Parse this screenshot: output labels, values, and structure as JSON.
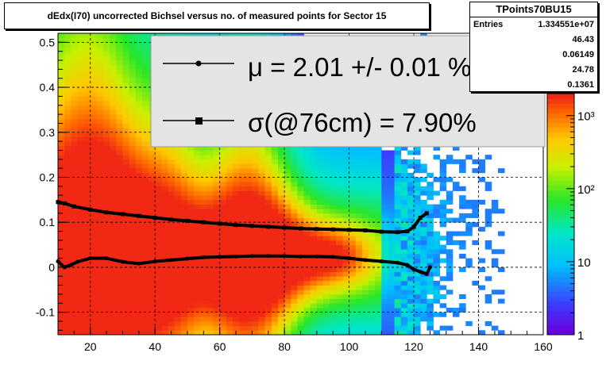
{
  "chart_data": {
    "type": "heatmap",
    "title": "dEdx(I70) uncorrected Bichsel versus no. of measured points for Sector 15",
    "xlim": [
      10,
      160
    ],
    "ylim": [
      -0.15,
      0.52
    ],
    "x_ticks": [
      "20",
      "40",
      "60",
      "80",
      "100",
      "120",
      "140",
      "160"
    ],
    "x_tick_values": [
      20,
      40,
      60,
      80,
      100,
      120,
      140,
      160
    ],
    "y_ticks": [
      "-0.1",
      "0",
      "0.1",
      "0.2",
      "0.3",
      "0.4",
      "0.5"
    ],
    "y_tick_values": [
      -0.1,
      0,
      0.1,
      0.2,
      0.3,
      0.4,
      0.5
    ],
    "z_scale": "log",
    "z_range": [
      1,
      2000
    ],
    "z_ticks": [
      "1",
      "10",
      "10²",
      "10³"
    ],
    "z_tick_values": [
      1,
      10,
      100,
      1000
    ],
    "grid": true,
    "series": [
      {
        "name": "μ",
        "marker": "circle",
        "x": [
          10,
          12,
          14,
          16,
          20,
          25,
          30,
          35,
          40,
          45,
          50,
          55,
          60,
          65,
          70,
          75,
          80,
          85,
          90,
          95,
          100,
          105,
          110,
          115,
          118,
          120,
          122,
          124,
          125
        ],
        "y": [
          0.013,
          0.0,
          0.005,
          0.012,
          0.02,
          0.02,
          0.012,
          0.008,
          0.013,
          0.016,
          0.019,
          0.022,
          0.023,
          0.024,
          0.025,
          0.025,
          0.025,
          0.024,
          0.024,
          0.023,
          0.02,
          0.016,
          0.013,
          0.01,
          0.005,
          -0.005,
          -0.01,
          -0.015,
          0.0
        ]
      },
      {
        "name": "σ(@76cm)",
        "marker": "square",
        "x": [
          10,
          12,
          15,
          20,
          25,
          30,
          35,
          40,
          45,
          50,
          55,
          60,
          65,
          70,
          75,
          80,
          85,
          90,
          95,
          100,
          105,
          110,
          115,
          118,
          120,
          122,
          124
        ],
        "y": [
          0.145,
          0.142,
          0.135,
          0.128,
          0.122,
          0.118,
          0.114,
          0.11,
          0.106,
          0.103,
          0.1,
          0.097,
          0.094,
          0.092,
          0.09,
          0.088,
          0.086,
          0.085,
          0.084,
          0.083,
          0.082,
          0.079,
          0.078,
          0.08,
          0.09,
          0.11,
          0.12
        ]
      }
    ]
  },
  "legend": {
    "mu_text": "μ  =  2.01 +/-  0.01 %",
    "sigma_text": "σ(@76cm) =  7.90%"
  },
  "stats": {
    "title": "TPoints70BU15",
    "entries_label": "Entries",
    "entries_value": "1.334551e+07",
    "values": [
      "46.43",
      "0.06149",
      "24.78",
      "0.1361"
    ]
  }
}
